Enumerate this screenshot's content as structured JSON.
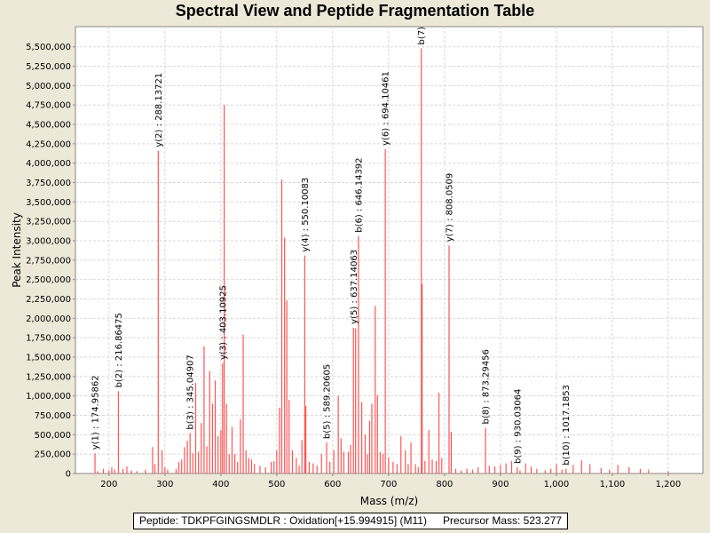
{
  "chart_data": {
    "type": "bar",
    "title": "Spectral View and Peptide Fragmentation Table",
    "xlabel": "Mass (m/z)",
    "ylabel": "Peak Intensity",
    "xlim": [
      140,
      1262
    ],
    "ylim": [
      0,
      5760000
    ],
    "x_ticks": [
      200,
      300,
      400,
      500,
      600,
      700,
      800,
      900,
      1000,
      1100,
      1200
    ],
    "x_tick_labels": [
      "200",
      "300",
      "400",
      "500",
      "600",
      "700",
      "800",
      "900",
      "1,000",
      "1,100",
      "1,200"
    ],
    "y_ticks": [
      0,
      250000,
      500000,
      750000,
      1000000,
      1250000,
      1500000,
      1750000,
      2000000,
      2250000,
      2500000,
      2750000,
      3000000,
      3250000,
      3500000,
      3750000,
      4000000,
      4250000,
      4500000,
      4750000,
      5000000,
      5250000,
      5500000
    ],
    "y_tick_labels": [
      "0",
      "250,000",
      "500,000",
      "750,000",
      "1,000,000",
      "1,250,000",
      "1,500,000",
      "1,750,000",
      "2,000,000",
      "2,250,000",
      "2,500,000",
      "2,750,000",
      "3,000,000",
      "3,250,000",
      "3,500,000",
      "3,750,000",
      "4,000,000",
      "4,250,000",
      "4,500,000",
      "4,750,000",
      "5,000,000",
      "5,250,000",
      "5,500,000"
    ],
    "grid": true,
    "peak_color": "#ff5555",
    "peaks": [
      [
        175.0,
        260000
      ],
      [
        180,
        30000
      ],
      [
        190,
        60000
      ],
      [
        200,
        40000
      ],
      [
        205,
        80000
      ],
      [
        210,
        50000
      ],
      [
        216.9,
        1060000
      ],
      [
        225,
        60000
      ],
      [
        232,
        90000
      ],
      [
        240,
        40000
      ],
      [
        250,
        30000
      ],
      [
        265,
        50000
      ],
      [
        278,
        340000
      ],
      [
        282,
        120000
      ],
      [
        288.1,
        4160000
      ],
      [
        295,
        300000
      ],
      [
        300,
        80000
      ],
      [
        305,
        50000
      ],
      [
        320,
        60000
      ],
      [
        325,
        150000
      ],
      [
        330,
        180000
      ],
      [
        335,
        340000
      ],
      [
        340,
        420000
      ],
      [
        345.0,
        520000
      ],
      [
        350,
        260000
      ],
      [
        355,
        1170000
      ],
      [
        360,
        280000
      ],
      [
        365,
        650000
      ],
      [
        370,
        1640000
      ],
      [
        375,
        350000
      ],
      [
        380,
        1320000
      ],
      [
        385,
        900000
      ],
      [
        390,
        1200000
      ],
      [
        395,
        480000
      ],
      [
        400,
        560000
      ],
      [
        403.1,
        1420000
      ],
      [
        406,
        4750000
      ],
      [
        410,
        900000
      ],
      [
        415,
        250000
      ],
      [
        420,
        600000
      ],
      [
        425,
        250000
      ],
      [
        430,
        150000
      ],
      [
        435,
        700000
      ],
      [
        440,
        1790000
      ],
      [
        445,
        300000
      ],
      [
        450,
        200000
      ],
      [
        455,
        180000
      ],
      [
        460,
        120000
      ],
      [
        470,
        100000
      ],
      [
        480,
        80000
      ],
      [
        490,
        150000
      ],
      [
        495,
        160000
      ],
      [
        500,
        300000
      ],
      [
        505,
        850000
      ],
      [
        509,
        3790000
      ],
      [
        514,
        3040000
      ],
      [
        518,
        2230000
      ],
      [
        522,
        950000
      ],
      [
        528,
        300000
      ],
      [
        535,
        200000
      ],
      [
        540,
        100000
      ],
      [
        545,
        430000
      ],
      [
        550.1,
        2810000
      ],
      [
        552,
        870000
      ],
      [
        558,
        150000
      ],
      [
        565,
        130000
      ],
      [
        572,
        100000
      ],
      [
        580,
        250000
      ],
      [
        589.2,
        400000
      ],
      [
        595,
        150000
      ],
      [
        602,
        300000
      ],
      [
        610,
        1000000
      ],
      [
        615,
        450000
      ],
      [
        620,
        280000
      ],
      [
        628,
        280000
      ],
      [
        632,
        370000
      ],
      [
        637.1,
        1880000
      ],
      [
        641,
        1870000
      ],
      [
        646.1,
        3060000
      ],
      [
        652,
        920000
      ],
      [
        658,
        500000
      ],
      [
        662,
        250000
      ],
      [
        666,
        680000
      ],
      [
        670,
        900000
      ],
      [
        676,
        2160000
      ],
      [
        680,
        1010000
      ],
      [
        685,
        280000
      ],
      [
        690,
        250000
      ],
      [
        694.1,
        4180000
      ],
      [
        700,
        210000
      ],
      [
        708,
        150000
      ],
      [
        715,
        120000
      ],
      [
        722,
        480000
      ],
      [
        730,
        300000
      ],
      [
        735,
        120000
      ],
      [
        740,
        400000
      ],
      [
        748,
        120000
      ],
      [
        753,
        80000
      ],
      [
        758.5,
        5480000
      ],
      [
        760,
        2440000
      ],
      [
        765,
        160000
      ],
      [
        772,
        560000
      ],
      [
        778,
        180000
      ],
      [
        785,
        160000
      ],
      [
        790,
        1040000
      ],
      [
        795,
        200000
      ],
      [
        808.1,
        2940000
      ],
      [
        812,
        540000
      ],
      [
        820,
        60000
      ],
      [
        830,
        40000
      ],
      [
        840,
        60000
      ],
      [
        850,
        50000
      ],
      [
        860,
        80000
      ],
      [
        873.3,
        590000
      ],
      [
        880,
        100000
      ],
      [
        890,
        90000
      ],
      [
        900,
        110000
      ],
      [
        910,
        130000
      ],
      [
        920,
        160000
      ],
      [
        930.0,
        80000
      ],
      [
        935,
        40000
      ],
      [
        945,
        130000
      ],
      [
        955,
        90000
      ],
      [
        965,
        60000
      ],
      [
        980,
        40000
      ],
      [
        990,
        60000
      ],
      [
        1000,
        120000
      ],
      [
        1010,
        50000
      ],
      [
        1017.2,
        60000
      ],
      [
        1030,
        110000
      ],
      [
        1045,
        170000
      ],
      [
        1060,
        120000
      ],
      [
        1080,
        70000
      ],
      [
        1095,
        50000
      ],
      [
        1110,
        110000
      ],
      [
        1130,
        80000
      ],
      [
        1150,
        60000
      ],
      [
        1165,
        50000
      ],
      [
        1200,
        30000
      ]
    ],
    "annotations": [
      {
        "label": "y(1) : 174.95862",
        "mz": 174.95862,
        "intensity": 260000
      },
      {
        "label": "b(2) : 216.86475",
        "mz": 216.86475,
        "intensity": 1060000
      },
      {
        "label": "y(2) : 288.13721",
        "mz": 288.13721,
        "intensity": 4160000
      },
      {
        "label": "b(3) : 345.04907",
        "mz": 345.04907,
        "intensity": 520000
      },
      {
        "label": "y(3) : 403.10925",
        "mz": 403.10925,
        "intensity": 1420000
      },
      {
        "label": "y(4) : 550.10083",
        "mz": 550.10083,
        "intensity": 2810000
      },
      {
        "label": "b(5) : 589.20605",
        "mz": 589.20605,
        "intensity": 400000
      },
      {
        "label": "y(5) : 637.14063",
        "mz": 637.14063,
        "intensity": 1880000
      },
      {
        "label": "b(6) : 646.14392",
        "mz": 646.14392,
        "intensity": 3060000
      },
      {
        "label": "y(6) : 694.10461",
        "mz": 694.10461,
        "intensity": 4180000
      },
      {
        "label": "b(7)",
        "mz": 758.5,
        "intensity": 5480000
      },
      {
        "label": "y(7) : 808.0509",
        "mz": 808.0509,
        "intensity": 2940000
      },
      {
        "label": "b(8) : 873.29456",
        "mz": 873.29456,
        "intensity": 590000
      },
      {
        "label": "b(9) : 930.03064",
        "mz": 930.03064,
        "intensity": 80000
      },
      {
        "label": "b(10) : 1017.1853",
        "mz": 1017.1853,
        "intensity": 60000
      }
    ]
  },
  "info": {
    "peptide": "Peptide: TDKPFGINGSMDLR : Oxidation[+15.994915] (M11)",
    "precursor": "Precursor Mass: 523.277"
  }
}
